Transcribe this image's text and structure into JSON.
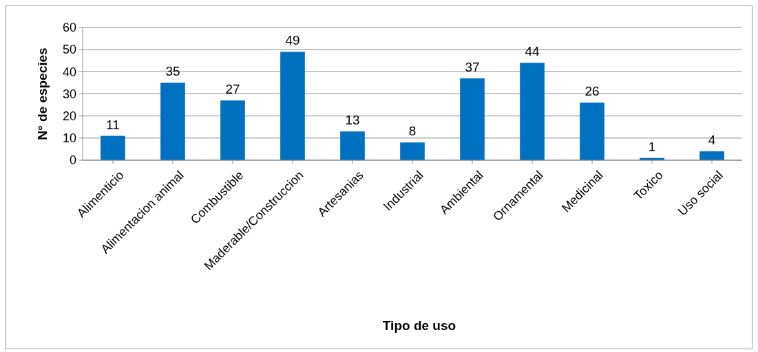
{
  "chart_data": {
    "type": "bar",
    "xlabel": "Tipo de uso",
    "ylabel": "N° de especies",
    "categories": [
      "Alimenticio",
      "Alimentacion animal",
      "Combustible",
      "Maderable/Construccion",
      "Artesanias",
      "Industrial",
      "Ambiental",
      "Ornamental",
      "Medicinal",
      "Toxico",
      "Uso social"
    ],
    "values": [
      11,
      35,
      27,
      49,
      13,
      8,
      37,
      44,
      26,
      1,
      4
    ],
    "color": "#0070c0",
    "ylim": [
      0,
      60
    ],
    "yticks": [
      0,
      10,
      20,
      30,
      40,
      50,
      60
    ],
    "grid": "y",
    "data_labels": true
  }
}
